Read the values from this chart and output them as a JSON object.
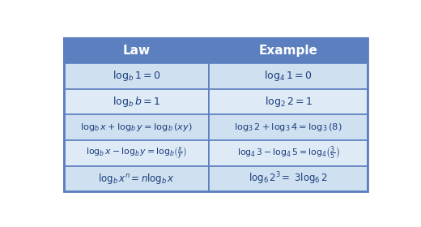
{
  "header_bg": "#5b7fbf",
  "header_text_color": "#ffffff",
  "row_bg_even": "#cfe0f0",
  "row_bg_odd": "#deeaf5",
  "border_color": "#5b7fbf",
  "text_color": "#1a3d7c",
  "headers": [
    "Law",
    "Example"
  ],
  "rows_law": [
    "$\\mathregular{log}_b\\mathregular{1 = 0}$",
    "$\\mathregular{log}_b\\mathregular{b = 1}$",
    "$\\mathregular{log}_b\\mathregular{x + log}_b\\mathregular{y = log}_b\\mathregular{(xy)}$",
    "$\\mathregular{log}_b\\mathregular{x - log}_b\\mathregular{y = log}_b\\mathregular{(x/y)}$",
    "$\\mathregular{log}_b\\mathregular{x}^n\\mathregular{ = nlog}_b\\mathregular{x}$"
  ],
  "rows_example": [
    "$\\mathregular{log}_4\\mathregular{1 = 0}$",
    "$\\mathregular{log}_2\\mathregular{2 = 1}$",
    "$\\mathregular{log}_3\\mathregular{2 + log}_3\\mathregular{4 = log}_3\\mathregular{(8)}$",
    "$\\mathregular{log}_4\\mathregular{3 - log}_4\\mathregular{5 = log}_4\\mathregular{(3/5)}$",
    "$\\mathregular{log}_6\\mathregular{2}^3\\mathregular{=  3log}_6\\mathregular{2}$"
  ],
  "fig_bg": "#ffffff",
  "fig_w": 5.2,
  "fig_h": 2.8,
  "dpi": 100
}
